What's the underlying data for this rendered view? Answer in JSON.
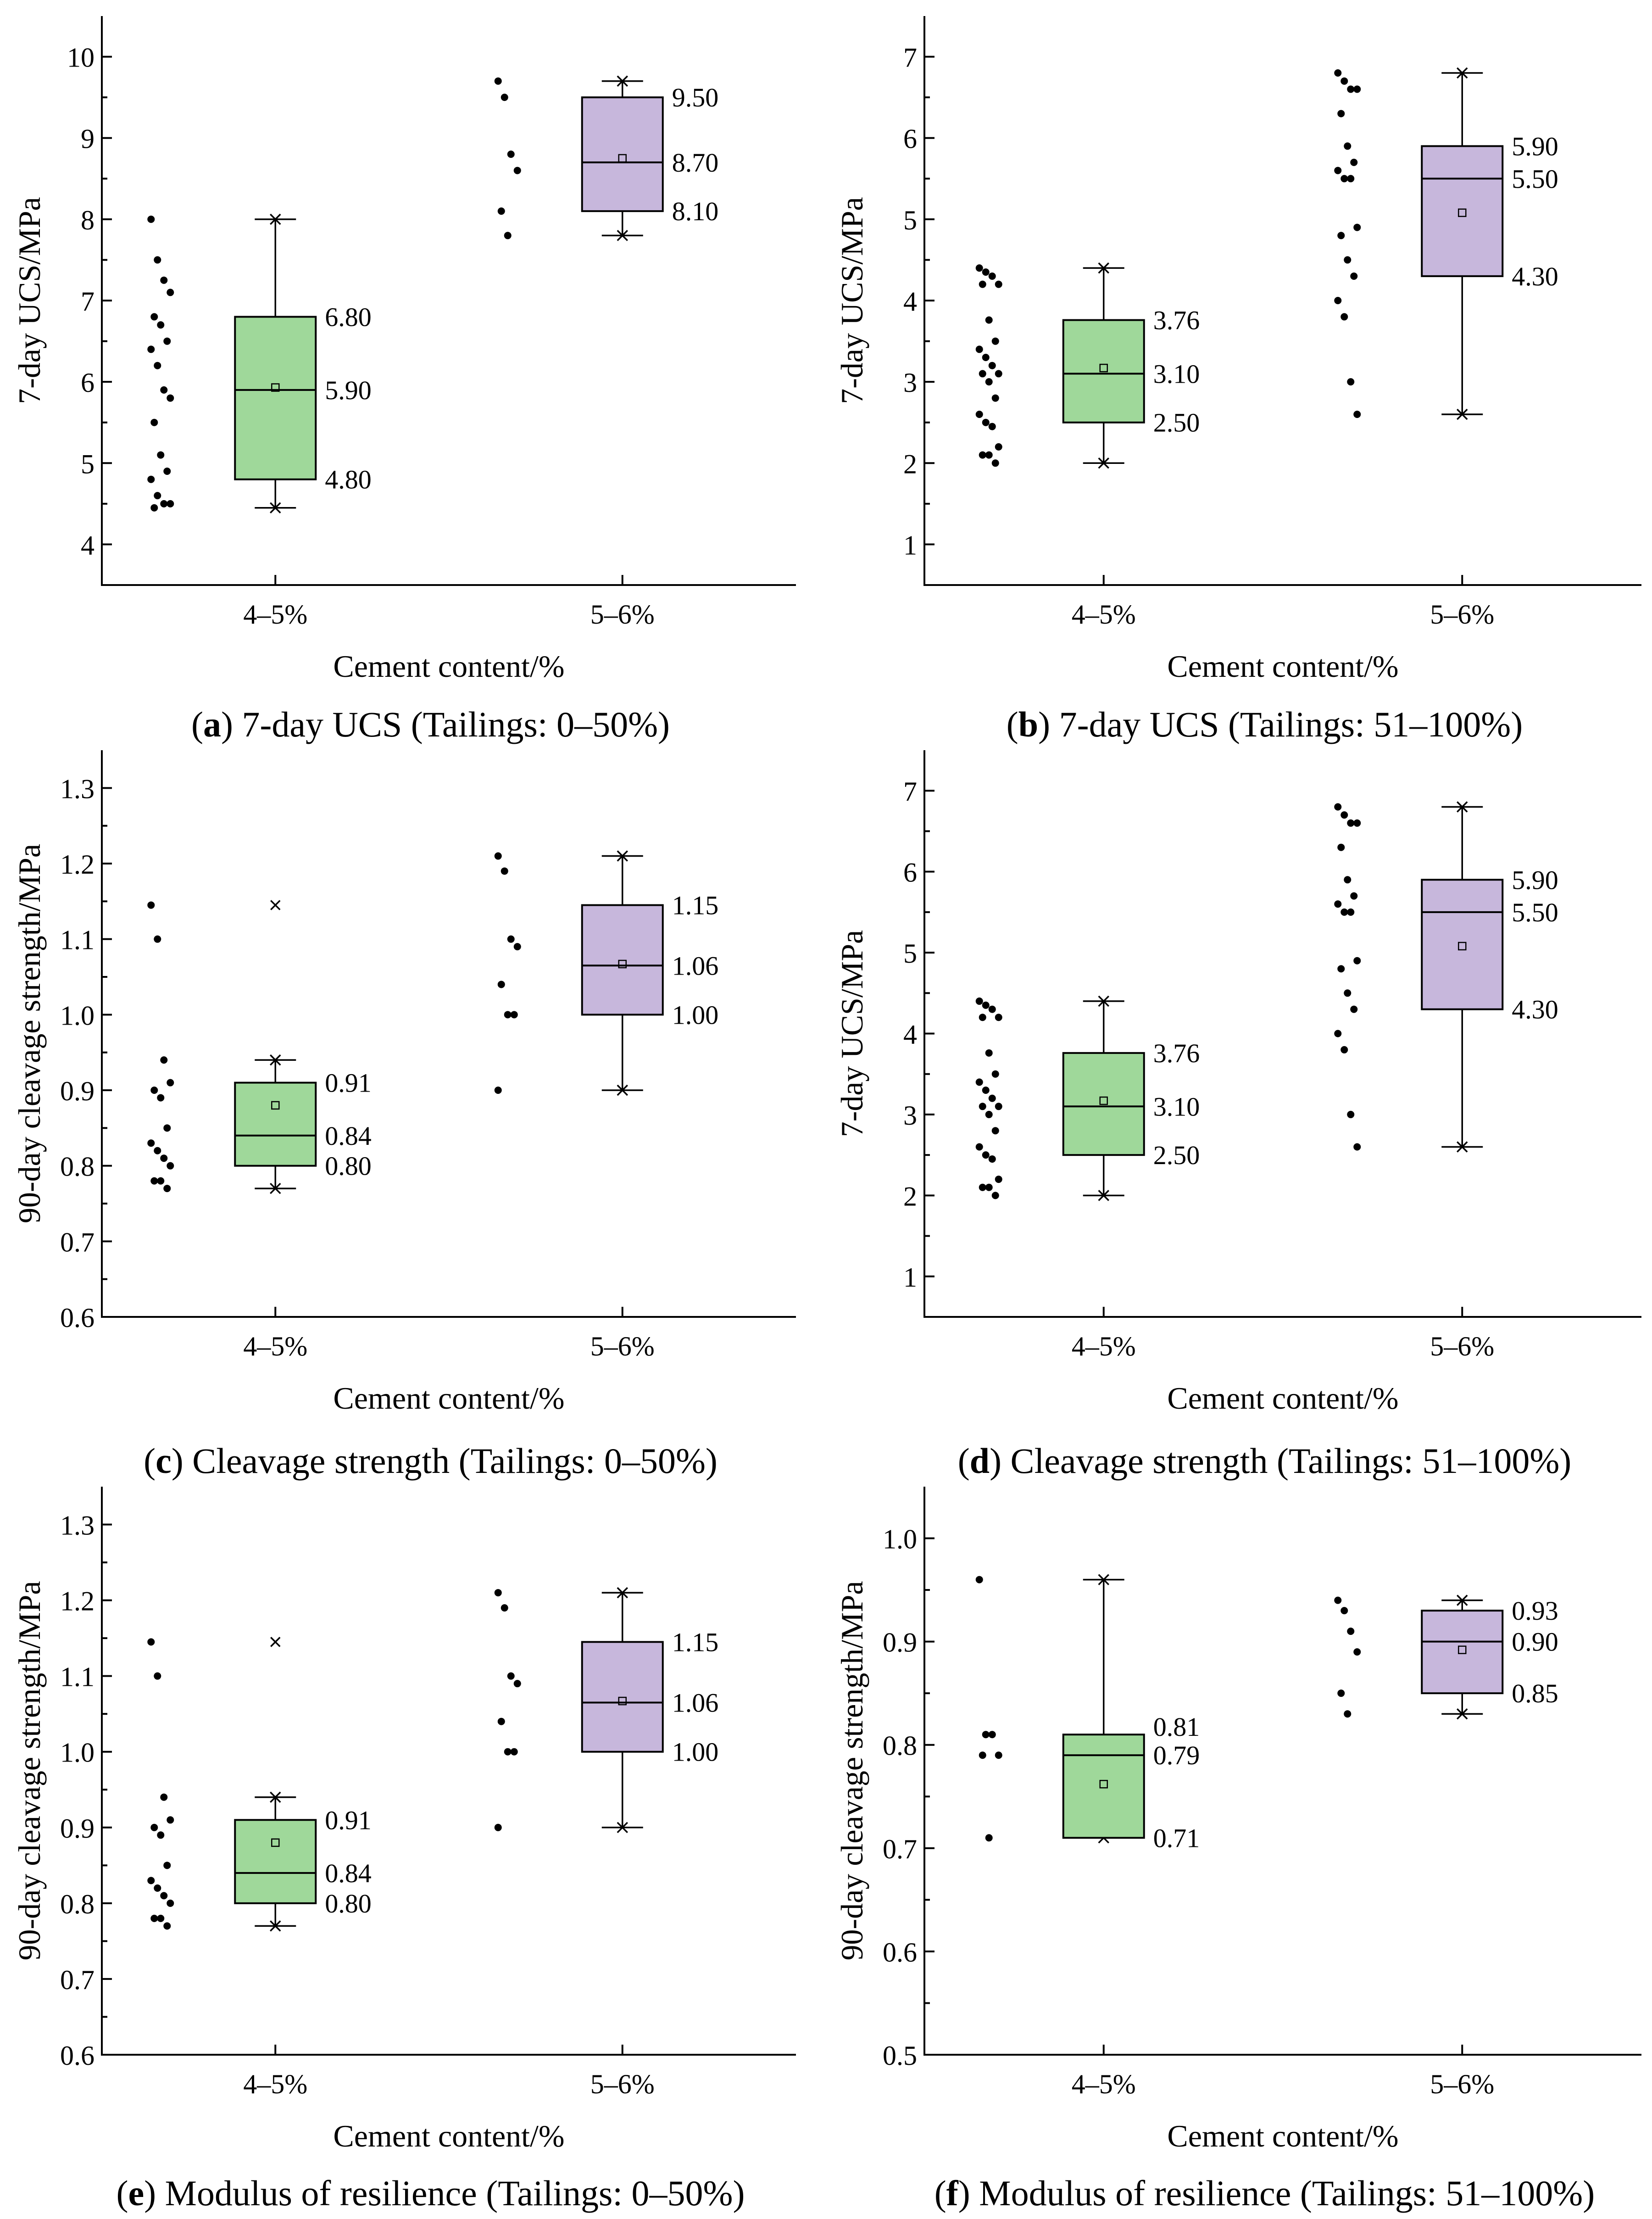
{
  "chart_data": [
    {
      "type": "box",
      "panel_label": "a",
      "caption": "7-day UCS (Tailings: 0–50%)",
      "xlabel": "Cement content/%",
      "ylabel": "7-day UCS/MPa",
      "ylim": [
        3.5,
        10.5
      ],
      "yticks": [
        "4",
        "5",
        "6",
        "7",
        "8",
        "9",
        "10"
      ],
      "categories": [
        "4–5%",
        "5–6%"
      ],
      "colors": [
        "#9fd89a",
        "#c7b7dc"
      ],
      "boxes": [
        {
          "q1": 4.8,
          "median": 5.9,
          "q3": 6.8,
          "mean": 5.93,
          "whisker_low": 4.45,
          "whisker_high": 8.0,
          "outliers": [],
          "labels": {
            "q3": "6.80",
            "median": "5.90",
            "q1": "4.80"
          },
          "points": [
            8.0,
            7.5,
            7.25,
            7.1,
            6.8,
            6.7,
            6.5,
            6.4,
            6.2,
            5.9,
            5.8,
            5.5,
            5.1,
            4.9,
            4.8,
            4.6,
            4.5,
            4.5,
            4.45
          ]
        },
        {
          "q1": 8.1,
          "median": 8.7,
          "q3": 9.5,
          "mean": 8.75,
          "whisker_low": 7.8,
          "whisker_high": 9.7,
          "outliers": [],
          "labels": {
            "q3": "9.50",
            "median": "8.70",
            "q1": "8.10"
          },
          "points": [
            9.7,
            9.5,
            8.8,
            8.6,
            8.1,
            7.8
          ]
        }
      ]
    },
    {
      "type": "box",
      "panel_label": "b",
      "caption": "7-day UCS (Tailings: 51–100%)",
      "xlabel": "Cement content/%",
      "ylabel": "7-day UCS/MPa",
      "ylim": [
        0.5,
        7.5
      ],
      "yticks": [
        "1",
        "2",
        "3",
        "4",
        "5",
        "6",
        "7"
      ],
      "categories": [
        "4–5%",
        "5–6%"
      ],
      "colors": [
        "#9fd89a",
        "#c7b7dc"
      ],
      "boxes": [
        {
          "q1": 2.5,
          "median": 3.1,
          "q3": 3.76,
          "mean": 3.17,
          "whisker_low": 2.0,
          "whisker_high": 4.4,
          "outliers": [],
          "labels": {
            "q3": "3.76",
            "median": "3.10",
            "q1": "2.50"
          },
          "points": [
            4.4,
            4.35,
            4.3,
            4.2,
            4.2,
            3.76,
            3.5,
            3.4,
            3.3,
            3.2,
            3.1,
            3.1,
            3.0,
            2.8,
            2.6,
            2.5,
            2.45,
            2.2,
            2.1,
            2.1,
            2.0
          ]
        },
        {
          "q1": 4.3,
          "median": 5.5,
          "q3": 5.9,
          "mean": 5.08,
          "whisker_low": 2.6,
          "whisker_high": 6.8,
          "outliers": [],
          "labels": {
            "q3": "5.90",
            "median": "5.50",
            "q1": "4.30"
          },
          "points": [
            6.8,
            6.7,
            6.6,
            6.6,
            6.3,
            5.9,
            5.7,
            5.6,
            5.5,
            5.5,
            4.9,
            4.8,
            4.5,
            4.3,
            4.0,
            3.8,
            3.0,
            2.6
          ]
        }
      ]
    },
    {
      "type": "box",
      "panel_label": "c",
      "caption": "Cleavage strength (Tailings: 0–50%)",
      "xlabel": "Cement content/%",
      "ylabel": "90-day cleavage strength/MPa",
      "ylim": [
        0.6,
        1.35
      ],
      "yticks": [
        "0.6",
        "0.7",
        "0.8",
        "0.9",
        "1.0",
        "1.1",
        "1.2",
        "1.3"
      ],
      "categories": [
        "4–5%",
        "5–6%"
      ],
      "colors": [
        "#9fd89a",
        "#c7b7dc"
      ],
      "boxes": [
        {
          "q1": 0.8,
          "median": 0.84,
          "q3": 0.91,
          "mean": 0.88,
          "whisker_low": 0.77,
          "whisker_high": 0.94,
          "outliers": [
            1.145
          ],
          "labels": {
            "q3": "0.91",
            "median": "0.84",
            "q1": "0.80"
          },
          "points": [
            1.145,
            1.1,
            0.94,
            0.91,
            0.9,
            0.89,
            0.85,
            0.83,
            0.82,
            0.81,
            0.8,
            0.78,
            0.78,
            0.77
          ]
        },
        {
          "q1": 1.0,
          "median": 1.065,
          "q3": 1.145,
          "mean": 1.067,
          "whisker_low": 0.9,
          "whisker_high": 1.21,
          "outliers": [],
          "labels": {
            "q3": "1.15",
            "median": "1.06",
            "q1": "1.00"
          },
          "points": [
            1.21,
            1.19,
            1.1,
            1.09,
            1.04,
            1.0,
            1.0,
            0.9
          ]
        }
      ]
    },
    {
      "type": "box",
      "panel_label": "d",
      "caption": "Cleavage strength (Tailings: 51–100%)",
      "xlabel": "Cement content/%",
      "ylabel": "7-day UCS/MPa",
      "ylim": [
        0.5,
        7.5
      ],
      "yticks": [
        "1",
        "2",
        "3",
        "4",
        "5",
        "6",
        "7"
      ],
      "categories": [
        "4–5%",
        "5–6%"
      ],
      "colors": [
        "#9fd89a",
        "#c7b7dc"
      ],
      "boxes": [
        {
          "q1": 2.5,
          "median": 3.1,
          "q3": 3.76,
          "mean": 3.17,
          "whisker_low": 2.0,
          "whisker_high": 4.4,
          "outliers": [],
          "labels": {
            "q3": "3.76",
            "median": "3.10",
            "q1": "2.50"
          },
          "points": [
            4.4,
            4.35,
            4.3,
            4.2,
            4.2,
            3.76,
            3.5,
            3.4,
            3.3,
            3.2,
            3.1,
            3.1,
            3.0,
            2.8,
            2.6,
            2.5,
            2.45,
            2.2,
            2.1,
            2.1,
            2.0
          ]
        },
        {
          "q1": 4.3,
          "median": 5.5,
          "q3": 5.9,
          "mean": 5.08,
          "whisker_low": 2.6,
          "whisker_high": 6.8,
          "outliers": [],
          "labels": {
            "q3": "5.90",
            "median": "5.50",
            "q1": "4.30"
          },
          "points": [
            6.8,
            6.7,
            6.6,
            6.6,
            6.3,
            5.9,
            5.7,
            5.6,
            5.5,
            5.5,
            4.9,
            4.8,
            4.5,
            4.3,
            4.0,
            3.8,
            3.0,
            2.6
          ]
        }
      ]
    },
    {
      "type": "box",
      "panel_label": "e",
      "caption": "Modulus of resilience (Tailings: 0–50%)",
      "xlabel": "Cement content/%",
      "ylabel": "90-day cleavage strength/MPa",
      "ylim": [
        0.6,
        1.35
      ],
      "yticks": [
        "0.6",
        "0.7",
        "0.8",
        "0.9",
        "1.0",
        "1.1",
        "1.2",
        "1.3"
      ],
      "categories": [
        "4–5%",
        "5–6%"
      ],
      "colors": [
        "#9fd89a",
        "#c7b7dc"
      ],
      "boxes": [
        {
          "q1": 0.8,
          "median": 0.84,
          "q3": 0.91,
          "mean": 0.88,
          "whisker_low": 0.77,
          "whisker_high": 0.94,
          "outliers": [
            1.145
          ],
          "labels": {
            "q3": "0.91",
            "median": "0.84",
            "q1": "0.80"
          },
          "points": [
            1.145,
            1.1,
            0.94,
            0.91,
            0.9,
            0.89,
            0.85,
            0.83,
            0.82,
            0.81,
            0.8,
            0.78,
            0.78,
            0.77
          ]
        },
        {
          "q1": 1.0,
          "median": 1.065,
          "q3": 1.145,
          "mean": 1.067,
          "whisker_low": 0.9,
          "whisker_high": 1.21,
          "outliers": [],
          "labels": {
            "q3": "1.15",
            "median": "1.06",
            "q1": "1.00"
          },
          "points": [
            1.21,
            1.19,
            1.1,
            1.09,
            1.04,
            1.0,
            1.0,
            0.9
          ]
        }
      ]
    },
    {
      "type": "box",
      "panel_label": "f",
      "caption": "Modulus of resilience (Tailings: 51–100%)",
      "xlabel": "Cement content/%",
      "ylabel": "90-day cleavage strength/MPa",
      "ylim": [
        0.5,
        1.05
      ],
      "yticks": [
        "0.5",
        "0.6",
        "0.7",
        "0.8",
        "0.9",
        "1.0"
      ],
      "categories": [
        "4–5%",
        "5–6%"
      ],
      "colors": [
        "#9fd89a",
        "#c7b7dc"
      ],
      "boxes": [
        {
          "q1": 0.71,
          "median": 0.79,
          "q3": 0.81,
          "mean": 0.762,
          "whisker_low": 0.71,
          "whisker_high": 0.96,
          "outliers": [],
          "labels": {
            "q3": "0.81",
            "median": "0.79",
            "q1": "0.71"
          },
          "points": [
            0.96,
            0.81,
            0.81,
            0.79,
            0.79,
            0.71
          ]
        },
        {
          "q1": 0.85,
          "median": 0.9,
          "q3": 0.93,
          "mean": 0.892,
          "whisker_low": 0.83,
          "whisker_high": 0.94,
          "outliers": [],
          "labels": {
            "q3": "0.93",
            "median": "0.90",
            "q1": "0.85"
          },
          "points": [
            0.94,
            0.93,
            0.91,
            0.89,
            0.85,
            0.83
          ]
        }
      ]
    }
  ]
}
